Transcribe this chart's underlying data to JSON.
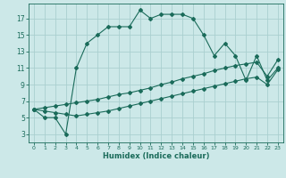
{
  "xlabel": "Humidex (Indice chaleur)",
  "bg_color": "#cce8e8",
  "grid_color": "#aacfcf",
  "line_color": "#1a6b5a",
  "xlim": [
    -0.5,
    23.5
  ],
  "ylim": [
    2.0,
    18.8
  ],
  "xticks": [
    0,
    1,
    2,
    3,
    4,
    5,
    6,
    7,
    8,
    9,
    10,
    11,
    12,
    13,
    14,
    15,
    16,
    17,
    18,
    19,
    20,
    21,
    22,
    23
  ],
  "yticks": [
    3,
    5,
    7,
    9,
    11,
    13,
    15,
    17
  ],
  "line1_x": [
    0,
    1,
    2,
    3,
    4,
    5,
    6,
    7,
    8,
    9,
    10,
    11,
    12,
    13,
    14,
    15,
    16,
    17,
    18,
    19,
    20,
    21,
    22,
    23
  ],
  "line1_y": [
    6,
    5,
    5,
    3,
    11,
    14,
    15,
    16,
    16,
    16,
    18,
    17,
    17.5,
    17.5,
    17.5,
    17,
    15,
    12.5,
    14,
    12.5,
    9.5,
    12.5,
    9.5,
    11
  ],
  "line2_x": [
    0,
    1,
    2,
    3,
    4,
    5,
    6,
    7,
    8,
    9,
    10,
    11,
    12,
    13,
    14,
    15,
    16,
    17,
    18,
    19,
    20,
    21,
    22,
    23
  ],
  "line2_y": [
    6,
    6.2,
    6.4,
    6.6,
    6.8,
    7.0,
    7.2,
    7.5,
    7.8,
    8.0,
    8.3,
    8.6,
    9.0,
    9.3,
    9.7,
    10.0,
    10.3,
    10.7,
    11.0,
    11.3,
    11.5,
    11.7,
    10.0,
    12.0
  ],
  "line3_x": [
    0,
    1,
    2,
    3,
    4,
    5,
    6,
    7,
    8,
    9,
    10,
    11,
    12,
    13,
    14,
    15,
    16,
    17,
    18,
    19,
    20,
    21,
    22,
    23
  ],
  "line3_y": [
    6,
    5.8,
    5.6,
    5.4,
    5.2,
    5.4,
    5.6,
    5.8,
    6.1,
    6.4,
    6.7,
    7.0,
    7.3,
    7.6,
    7.9,
    8.2,
    8.5,
    8.8,
    9.1,
    9.4,
    9.7,
    9.9,
    9.0,
    10.8
  ]
}
